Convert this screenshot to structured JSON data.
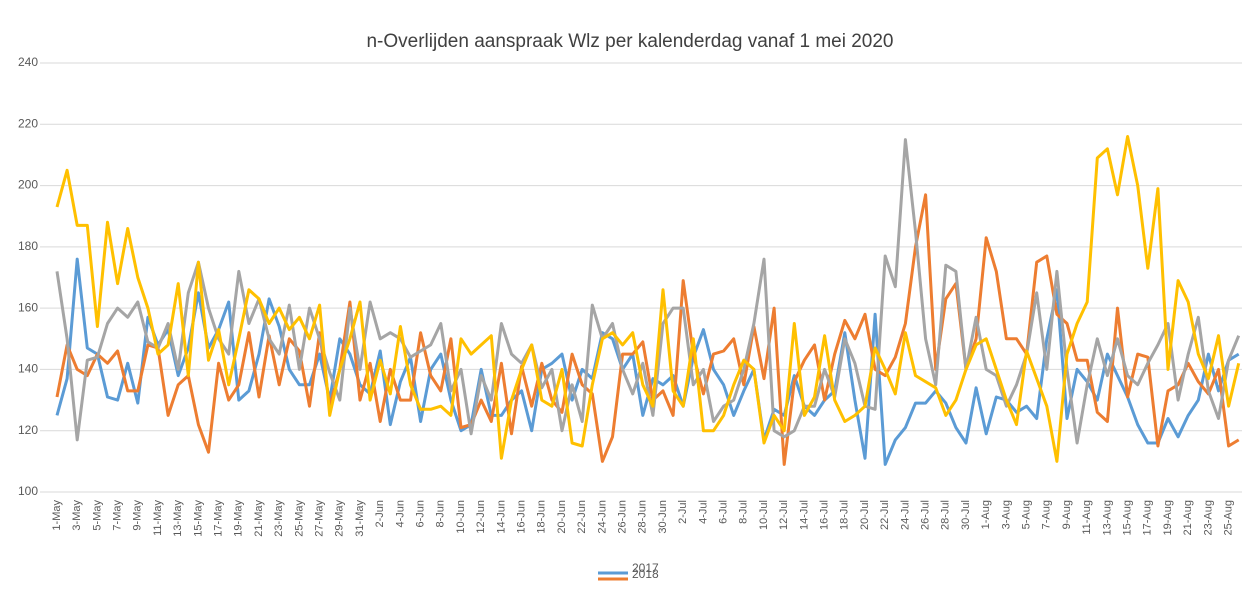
{
  "chart_data": {
    "type": "line",
    "title": "n-Overlijden  aanspraak  Wlz  per  kalenderdag  vanaf  1  mei  2020",
    "categories": [
      "1-May",
      null,
      "3-May",
      null,
      "5-May",
      null,
      "7-May",
      null,
      "9-May",
      null,
      "11-May",
      null,
      "13-May",
      null,
      "15-May",
      null,
      "17-May",
      null,
      "19-May",
      null,
      "21-May",
      null,
      "23-May",
      null,
      "25-May",
      null,
      "27-May",
      null,
      "29-May",
      null,
      "31-May",
      null,
      "2-Jun",
      null,
      "4-Jun",
      null,
      "6-Jun",
      null,
      "8-Jun",
      null,
      "10-Jun",
      null,
      "12-Jun",
      null,
      "14-Jun",
      null,
      "16-Jun",
      null,
      "18-Jun",
      null,
      "20-Jun",
      null,
      "22-Jun",
      null,
      "24-Jun",
      null,
      "26-Jun",
      null,
      "28-Jun",
      null,
      "30-Jun",
      null,
      "2-Jul",
      null,
      "4-Jul",
      null,
      "6-Jul",
      null,
      "8-Jul",
      null,
      "10-Jul",
      null,
      "12-Jul",
      null,
      "14-Jul",
      null,
      "16-Jul",
      null,
      "18-Jul",
      null,
      "20-Jul",
      null,
      "22-Jul",
      null,
      "24-Jul",
      null,
      "26-Jul",
      null,
      "28-Jul",
      null,
      "30-Jul",
      null,
      "1-Aug",
      null,
      "3-Aug",
      null,
      "5-Aug",
      null,
      "7-Aug",
      null,
      "9-Aug",
      null,
      "11-Aug",
      null,
      "13-Aug",
      null,
      "15-Aug",
      null,
      "17-Aug",
      null,
      "19-Aug",
      null,
      "21-Aug",
      null,
      "23-Aug",
      null,
      "25-Aug",
      null
    ],
    "series": [
      {
        "name": "2017",
        "color": "#5b9bd5",
        "values": [
          125,
          137,
          176,
          147,
          145,
          131,
          130,
          142,
          129,
          157,
          148,
          153,
          138,
          147,
          165,
          147,
          153,
          162,
          130,
          133,
          145,
          163,
          154,
          140,
          135,
          135,
          145,
          130,
          150,
          145,
          135,
          132,
          146,
          122,
          136,
          144,
          123,
          140,
          145,
          130,
          120,
          122,
          140,
          125,
          125,
          130,
          133,
          120,
          140,
          142,
          145,
          130,
          140,
          137,
          152,
          150,
          140,
          145,
          125,
          137,
          135,
          138,
          128,
          144,
          153,
          140,
          135,
          125,
          133,
          140,
          117,
          127,
          125,
          138,
          128,
          125,
          130,
          133,
          152,
          130,
          111,
          158,
          109,
          117,
          121,
          129,
          129,
          133,
          129,
          121,
          116,
          134,
          119,
          131,
          130,
          126,
          128,
          124,
          150,
          166,
          124,
          140,
          136,
          130,
          145,
          138,
          131,
          122,
          116,
          116,
          124,
          118,
          125,
          130,
          145,
          133,
          143,
          145
        ]
      },
      {
        "name": "2018",
        "color": "#ed7d31",
        "values": [
          131,
          148,
          140,
          138,
          145,
          142,
          146,
          133,
          133,
          148,
          147,
          125,
          135,
          138,
          122,
          113,
          142,
          130,
          135,
          152,
          131,
          151,
          135,
          150,
          146,
          128,
          152,
          128,
          140,
          162,
          130,
          142,
          123,
          140,
          130,
          130,
          152,
          138,
          133,
          150,
          121,
          122,
          130,
          123,
          142,
          119,
          141,
          128,
          142,
          130,
          126,
          145,
          135,
          132,
          110,
          118,
          145,
          145,
          149,
          130,
          133,
          125,
          169,
          145,
          132,
          145,
          146,
          150,
          135,
          154,
          137,
          160,
          109,
          136,
          143,
          148,
          130,
          145,
          156,
          150,
          158,
          140,
          138,
          144,
          155,
          180,
          197,
          140,
          163,
          168,
          140,
          150,
          183,
          172,
          150,
          150,
          145,
          175,
          177,
          158,
          155,
          143,
          143,
          126,
          123,
          160,
          131,
          145,
          144,
          115,
          133,
          135,
          142,
          136,
          132,
          140,
          115,
          117
        ]
      },
      {
        "color": "#a5a5a5",
        "values": [
          172,
          150,
          117,
          143,
          144,
          155,
          160,
          157,
          162,
          149,
          147,
          155,
          140,
          165,
          175,
          160,
          150,
          145,
          172,
          155,
          163,
          150,
          145,
          161,
          140,
          160,
          150,
          139,
          130,
          160,
          140,
          162,
          150,
          152,
          150,
          144,
          146,
          148,
          155,
          133,
          140,
          119,
          138,
          130,
          155,
          145,
          142,
          148,
          134,
          140,
          120,
          135,
          123,
          161,
          150,
          155,
          140,
          132,
          142,
          125,
          155,
          160,
          160,
          135,
          140,
          123,
          128,
          130,
          140,
          155,
          176,
          120,
          118,
          120,
          128,
          128,
          140,
          131,
          150,
          142,
          128,
          127,
          177,
          167,
          215,
          185,
          150,
          135,
          174,
          172,
          140,
          157,
          140,
          138,
          128,
          135,
          145,
          165,
          140,
          172,
          140,
          116,
          135,
          150,
          138,
          150,
          138,
          135,
          142,
          148,
          155,
          130,
          145,
          157,
          133,
          124,
          143,
          151
        ]
      },
      {
        "color": "#ffc000",
        "values": [
          193,
          205,
          187,
          187,
          154,
          188,
          168,
          186,
          170,
          160,
          145,
          148,
          168,
          138,
          175,
          143,
          153,
          135,
          150,
          166,
          163,
          155,
          160,
          153,
          157,
          150,
          161,
          125,
          140,
          150,
          162,
          130,
          143,
          132,
          154,
          135,
          127,
          127,
          128,
          125,
          150,
          145,
          148,
          151,
          111,
          130,
          140,
          148,
          130,
          128,
          140,
          116,
          115,
          135,
          150,
          152,
          148,
          152,
          135,
          128,
          166,
          133,
          128,
          150,
          120,
          120,
          125,
          135,
          143,
          140,
          116,
          125,
          120,
          155,
          125,
          131,
          151,
          130,
          123,
          125,
          128,
          147,
          140,
          132,
          152,
          138,
          136,
          134,
          125,
          130,
          140,
          148,
          150,
          140,
          130,
          122,
          146,
          137,
          128,
          110,
          145,
          155,
          162,
          209,
          212,
          197,
          216,
          200,
          173,
          199,
          140,
          169,
          162,
          145,
          137,
          151,
          128,
          142
        ]
      }
    ],
    "ylim": [
      100,
      240
    ],
    "yticks": [
      100,
      120,
      140,
      160,
      180,
      200,
      220,
      240
    ],
    "grid": true
  }
}
